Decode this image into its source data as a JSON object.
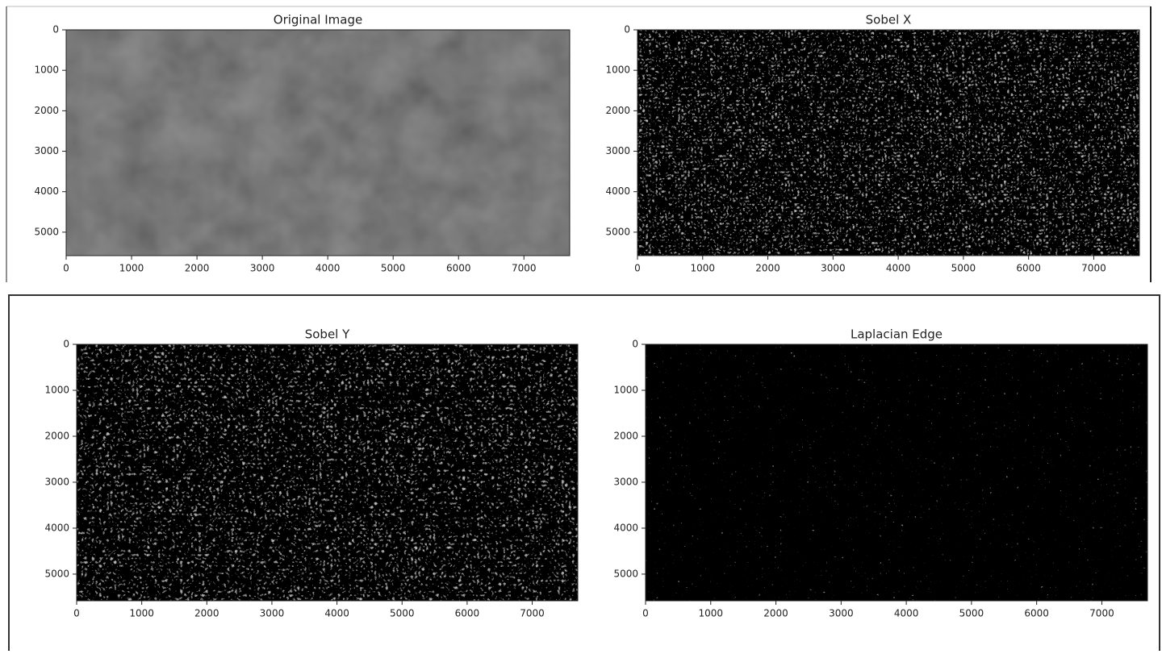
{
  "chart_data": [
    {
      "type": "image",
      "title": "Original Image",
      "xlim": [
        0,
        7700
      ],
      "ylim": [
        5580,
        0
      ],
      "xticks": [
        0,
        1000,
        2000,
        3000,
        4000,
        5000,
        6000,
        7000
      ],
      "yticks": [
        0,
        1000,
        2000,
        3000,
        4000,
        5000
      ]
    },
    {
      "type": "image",
      "title": "Sobel X",
      "xlim": [
        0,
        7700
      ],
      "ylim": [
        5580,
        0
      ],
      "xticks": [
        0,
        1000,
        2000,
        3000,
        4000,
        5000,
        6000,
        7000
      ],
      "yticks": [
        0,
        1000,
        2000,
        3000,
        4000,
        5000
      ]
    },
    {
      "type": "image",
      "title": "Sobel Y",
      "xlim": [
        0,
        7700
      ],
      "ylim": [
        5580,
        0
      ],
      "xticks": [
        0,
        1000,
        2000,
        3000,
        4000,
        5000,
        6000,
        7000
      ],
      "yticks": [
        0,
        1000,
        2000,
        3000,
        4000,
        5000
      ]
    },
    {
      "type": "image",
      "title": "Laplacian Edge",
      "xlim": [
        0,
        7700
      ],
      "ylim": [
        5580,
        0
      ],
      "xticks": [
        0,
        1000,
        2000,
        3000,
        4000,
        5000,
        6000,
        7000
      ],
      "yticks": [
        0,
        1000,
        2000,
        3000,
        4000,
        5000
      ]
    }
  ]
}
